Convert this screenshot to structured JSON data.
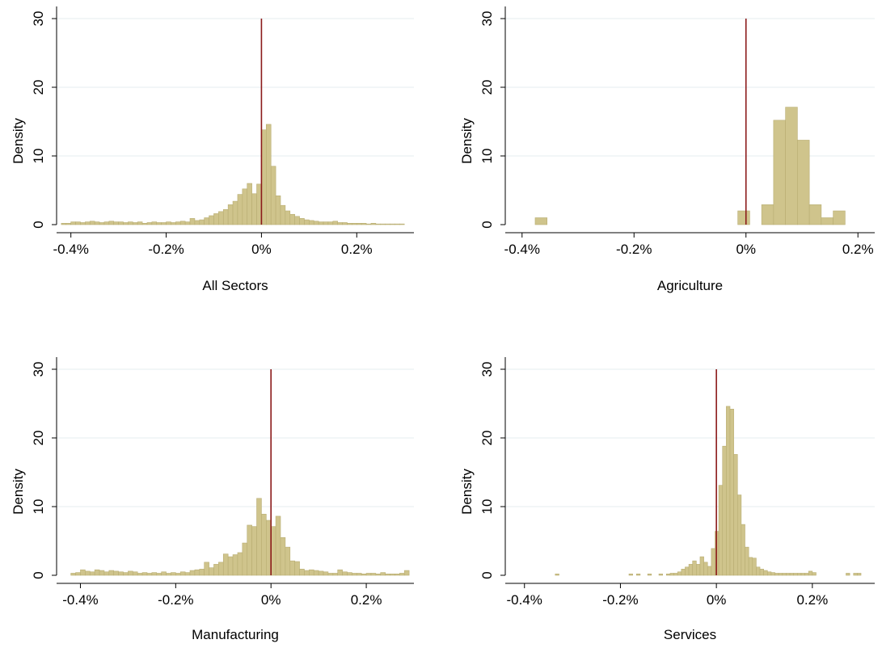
{
  "colors": {
    "bar_fill": "#cfc48c",
    "bar_stroke": "#b8ad72",
    "zero_line": "#8b1a1a",
    "grid": "#e6ecef",
    "axis": "#000000"
  },
  "chart_data": [
    {
      "type": "bar",
      "title": "All Sectors",
      "ylabel": "Density",
      "xlim": [
        -0.43,
        0.32
      ],
      "ylim": [
        0,
        30
      ],
      "xticks": [
        -0.4,
        -0.2,
        0,
        0.2
      ],
      "xtick_labels": [
        "-0.4%",
        "-0.2%",
        "0%",
        "0.2%"
      ],
      "yticks": [
        0,
        10,
        20,
        30
      ],
      "ytick_labels": [
        "0",
        "10",
        "20",
        "30"
      ],
      "grid": true,
      "reference_line_x": 0,
      "bin_width": 0.01,
      "bins": [
        [
          -0.42,
          0.2
        ],
        [
          -0.41,
          0.2
        ],
        [
          -0.4,
          0.4
        ],
        [
          -0.39,
          0.4
        ],
        [
          -0.38,
          0.3
        ],
        [
          -0.37,
          0.4
        ],
        [
          -0.36,
          0.5
        ],
        [
          -0.35,
          0.4
        ],
        [
          -0.34,
          0.3
        ],
        [
          -0.33,
          0.4
        ],
        [
          -0.32,
          0.5
        ],
        [
          -0.31,
          0.4
        ],
        [
          -0.3,
          0.4
        ],
        [
          -0.29,
          0.3
        ],
        [
          -0.28,
          0.4
        ],
        [
          -0.27,
          0.3
        ],
        [
          -0.26,
          0.4
        ],
        [
          -0.25,
          0.2
        ],
        [
          -0.24,
          0.3
        ],
        [
          -0.23,
          0.4
        ],
        [
          -0.22,
          0.3
        ],
        [
          -0.21,
          0.3
        ],
        [
          -0.2,
          0.4
        ],
        [
          -0.19,
          0.3
        ],
        [
          -0.18,
          0.4
        ],
        [
          -0.17,
          0.5
        ],
        [
          -0.16,
          0.4
        ],
        [
          -0.15,
          0.9
        ],
        [
          -0.14,
          0.6
        ],
        [
          -0.13,
          0.7
        ],
        [
          -0.12,
          1.0
        ],
        [
          -0.11,
          1.3
        ],
        [
          -0.1,
          1.6
        ],
        [
          -0.09,
          1.9
        ],
        [
          -0.08,
          2.2
        ],
        [
          -0.07,
          2.9
        ],
        [
          -0.06,
          3.4
        ],
        [
          -0.05,
          4.4
        ],
        [
          -0.04,
          5.2
        ],
        [
          -0.03,
          6.0
        ],
        [
          -0.02,
          4.5
        ],
        [
          -0.01,
          5.9
        ],
        [
          0.0,
          13.8
        ],
        [
          0.01,
          14.6
        ],
        [
          0.02,
          8.5
        ],
        [
          0.03,
          4.2
        ],
        [
          0.04,
          2.8
        ],
        [
          0.05,
          2.0
        ],
        [
          0.06,
          1.5
        ],
        [
          0.07,
          1.2
        ],
        [
          0.08,
          0.9
        ],
        [
          0.09,
          0.7
        ],
        [
          0.1,
          0.6
        ],
        [
          0.11,
          0.5
        ],
        [
          0.12,
          0.4
        ],
        [
          0.13,
          0.4
        ],
        [
          0.14,
          0.4
        ],
        [
          0.15,
          0.5
        ],
        [
          0.16,
          0.3
        ],
        [
          0.17,
          0.3
        ],
        [
          0.18,
          0.2
        ],
        [
          0.19,
          0.2
        ],
        [
          0.2,
          0.2
        ],
        [
          0.21,
          0.2
        ],
        [
          0.22,
          0.1
        ],
        [
          0.23,
          0.2
        ],
        [
          0.24,
          0.1
        ],
        [
          0.25,
          0.1
        ],
        [
          0.26,
          0.1
        ],
        [
          0.27,
          0.1
        ],
        [
          0.28,
          0.1
        ],
        [
          0.29,
          0.1
        ]
      ]
    },
    {
      "type": "bar",
      "title": "Agriculture",
      "ylabel": "Density",
      "xlim": [
        -0.43,
        0.23
      ],
      "ylim": [
        0,
        30
      ],
      "xticks": [
        -0.4,
        -0.2,
        0,
        0.2
      ],
      "xtick_labels": [
        "-0.4%",
        "-0.2%",
        "0%",
        "0.2%"
      ],
      "yticks": [
        0,
        10,
        20,
        30
      ],
      "ytick_labels": [
        "0",
        "10",
        "20",
        "30"
      ],
      "grid": true,
      "reference_line_x": 0,
      "bin_width": 0.0213,
      "bins": [
        [
          -0.3766,
          1.0
        ],
        [
          -0.0146,
          2.0
        ],
        [
          0.028,
          2.9
        ],
        [
          0.0493,
          15.2
        ],
        [
          0.0706,
          17.1
        ],
        [
          0.0919,
          12.3
        ],
        [
          0.1132,
          2.9
        ],
        [
          0.1345,
          1.0
        ],
        [
          0.1558,
          2.0
        ]
      ]
    },
    {
      "type": "bar",
      "title": "Manufacturing",
      "ylabel": "Density",
      "xlim": [
        -0.45,
        0.3
      ],
      "ylim": [
        0,
        30
      ],
      "xticks": [
        -0.4,
        -0.2,
        0,
        0.2
      ],
      "xtick_labels": [
        "-0.4%",
        "-0.2%",
        "0%",
        "0.2%"
      ],
      "yticks": [
        0,
        10,
        20,
        30
      ],
      "ytick_labels": [
        "0",
        "10",
        "20",
        "30"
      ],
      "grid": true,
      "reference_line_x": 0,
      "bin_width": 0.01,
      "bins": [
        [
          -0.42,
          0.3
        ],
        [
          -0.41,
          0.4
        ],
        [
          -0.4,
          0.8
        ],
        [
          -0.39,
          0.6
        ],
        [
          -0.38,
          0.5
        ],
        [
          -0.37,
          0.8
        ],
        [
          -0.36,
          0.7
        ],
        [
          -0.35,
          0.5
        ],
        [
          -0.34,
          0.7
        ],
        [
          -0.33,
          0.6
        ],
        [
          -0.32,
          0.5
        ],
        [
          -0.31,
          0.4
        ],
        [
          -0.3,
          0.6
        ],
        [
          -0.29,
          0.5
        ],
        [
          -0.28,
          0.3
        ],
        [
          -0.27,
          0.4
        ],
        [
          -0.26,
          0.3
        ],
        [
          -0.25,
          0.4
        ],
        [
          -0.24,
          0.3
        ],
        [
          -0.23,
          0.5
        ],
        [
          -0.22,
          0.3
        ],
        [
          -0.21,
          0.4
        ],
        [
          -0.2,
          0.3
        ],
        [
          -0.19,
          0.5
        ],
        [
          -0.18,
          0.4
        ],
        [
          -0.17,
          0.7
        ],
        [
          -0.16,
          0.8
        ],
        [
          -0.15,
          0.9
        ],
        [
          -0.14,
          1.9
        ],
        [
          -0.13,
          1.1
        ],
        [
          -0.12,
          1.6
        ],
        [
          -0.11,
          1.9
        ],
        [
          -0.1,
          3.1
        ],
        [
          -0.09,
          2.7
        ],
        [
          -0.08,
          3.0
        ],
        [
          -0.07,
          3.3
        ],
        [
          -0.06,
          4.7
        ],
        [
          -0.05,
          7.3
        ],
        [
          -0.04,
          7.1
        ],
        [
          -0.03,
          11.2
        ],
        [
          -0.02,
          8.9
        ],
        [
          -0.01,
          8.0
        ],
        [
          0.0,
          7.1
        ],
        [
          0.01,
          8.6
        ],
        [
          0.02,
          5.5
        ],
        [
          0.03,
          4.1
        ],
        [
          0.04,
          2.1
        ],
        [
          0.05,
          2.0
        ],
        [
          0.06,
          0.9
        ],
        [
          0.07,
          0.7
        ],
        [
          0.08,
          0.8
        ],
        [
          0.09,
          0.7
        ],
        [
          0.1,
          0.6
        ],
        [
          0.11,
          0.5
        ],
        [
          0.12,
          0.3
        ],
        [
          0.13,
          0.3
        ],
        [
          0.14,
          0.8
        ],
        [
          0.15,
          0.5
        ],
        [
          0.16,
          0.4
        ],
        [
          0.17,
          0.3
        ],
        [
          0.18,
          0.3
        ],
        [
          0.19,
          0.2
        ],
        [
          0.2,
          0.3
        ],
        [
          0.21,
          0.3
        ],
        [
          0.22,
          0.2
        ],
        [
          0.23,
          0.4
        ],
        [
          0.24,
          0.2
        ],
        [
          0.25,
          0.2
        ],
        [
          0.26,
          0.2
        ],
        [
          0.27,
          0.3
        ],
        [
          0.28,
          0.7
        ]
      ]
    },
    {
      "type": "bar",
      "title": "Services",
      "ylabel": "Density",
      "xlim": [
        -0.44,
        0.33
      ],
      "ylim": [
        0,
        30
      ],
      "xticks": [
        -0.4,
        -0.2,
        0,
        0.2
      ],
      "xtick_labels": [
        "-0.4%",
        "-0.2%",
        "0%",
        "0.2%"
      ],
      "yticks": [
        0,
        10,
        20,
        30
      ],
      "ytick_labels": [
        "0",
        "10",
        "20",
        "30"
      ],
      "grid": true,
      "reference_line_x": 0,
      "bin_width": 0.0078,
      "bins": [
        [
          -0.3358,
          0.2
        ],
        [
          -0.1822,
          0.2
        ],
        [
          -0.1666,
          0.2
        ],
        [
          -0.1432,
          0.2
        ],
        [
          -0.1198,
          0.2
        ],
        [
          -0.1042,
          0.2
        ],
        [
          -0.0964,
          0.3
        ],
        [
          -0.0886,
          0.3
        ],
        [
          -0.0808,
          0.5
        ],
        [
          -0.073,
          0.9
        ],
        [
          -0.0652,
          1.2
        ],
        [
          -0.0574,
          1.6
        ],
        [
          -0.0496,
          2.1
        ],
        [
          -0.0418,
          1.6
        ],
        [
          -0.034,
          2.7
        ],
        [
          -0.0262,
          1.9
        ],
        [
          -0.0184,
          1.3
        ],
        [
          -0.0106,
          3.9
        ],
        [
          -0.0028,
          6.4
        ],
        [
          0.005,
          13.1
        ],
        [
          0.0128,
          18.8
        ],
        [
          0.0206,
          24.6
        ],
        [
          0.0284,
          24.2
        ],
        [
          0.0362,
          17.6
        ],
        [
          0.044,
          11.7
        ],
        [
          0.0518,
          7.4
        ],
        [
          0.0596,
          4.1
        ],
        [
          0.0674,
          2.6
        ],
        [
          0.0752,
          2.5
        ],
        [
          0.083,
          1.2
        ],
        [
          0.0908,
          0.9
        ],
        [
          0.0986,
          0.7
        ],
        [
          0.1064,
          0.5
        ],
        [
          0.1142,
          0.4
        ],
        [
          0.122,
          0.3
        ],
        [
          0.1298,
          0.3
        ],
        [
          0.1376,
          0.3
        ],
        [
          0.1454,
          0.3
        ],
        [
          0.1532,
          0.3
        ],
        [
          0.161,
          0.3
        ],
        [
          0.1688,
          0.3
        ],
        [
          0.1766,
          0.3
        ],
        [
          0.1844,
          0.3
        ],
        [
          0.1922,
          0.6
        ],
        [
          0.2,
          0.4
        ],
        [
          0.2702,
          0.3
        ],
        [
          0.2858,
          0.3
        ],
        [
          0.2936,
          0.3
        ]
      ]
    }
  ]
}
